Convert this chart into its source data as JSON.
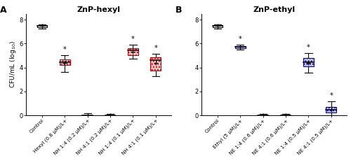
{
  "panel_A": {
    "title": "ZnP-hexyl",
    "label": "A",
    "categories": [
      "Control",
      "Hexyl (0.8 μM)/L+",
      "NH 1:4 (0.2 μM)/L+",
      "NH 4:1 (0.2 μM)/L+",
      "NH 1:4 (0.1 μM)/L+",
      "NH 4:1 (0.1 μM)/L+"
    ],
    "boxes": [
      {
        "q1": 7.38,
        "median": 7.47,
        "q3": 7.54,
        "whislo": 7.28,
        "whishi": 7.62,
        "mean": 7.47,
        "color": "none",
        "has_star": false
      },
      {
        "q1": 4.2,
        "median": 4.45,
        "q3": 4.68,
        "whislo": 3.65,
        "whishi": 5.05,
        "mean": 4.38,
        "color": "red",
        "has_star": true
      },
      {
        "q1": 0.0,
        "median": 0.0,
        "q3": 0.0,
        "whislo": 0.0,
        "whishi": 0.18,
        "mean": 0.0,
        "color": "none",
        "has_star": false
      },
      {
        "q1": 0.0,
        "median": 0.0,
        "q3": 0.0,
        "whislo": 0.0,
        "whishi": 0.12,
        "mean": 0.0,
        "color": "none",
        "has_star": false
      },
      {
        "q1": 5.05,
        "median": 5.45,
        "q3": 5.62,
        "whislo": 4.75,
        "whishi": 5.88,
        "mean": 5.35,
        "color": "red",
        "has_star": true
      },
      {
        "q1": 3.75,
        "median": 4.62,
        "q3": 4.88,
        "whislo": 3.25,
        "whishi": 5.15,
        "mean": 4.38,
        "color": "red",
        "has_star": true
      }
    ],
    "ylim": [
      0,
      8.5
    ],
    "yticks": [
      0,
      2,
      4,
      6,
      8
    ]
  },
  "panel_B": {
    "title": "ZnP-ethyl",
    "label": "B",
    "categories": [
      "Control",
      "Ethyl (5 μM)/L+",
      "NE 1:4 (0.6 μM)/L+",
      "NE 4:1 (0.6 μM)/L+",
      "NE 1:4 (0.5 μM)/L+",
      "NE 4:1 (0.5 μM)/L+"
    ],
    "boxes": [
      {
        "q1": 7.38,
        "median": 7.47,
        "q3": 7.54,
        "whislo": 7.28,
        "whishi": 7.62,
        "mean": 7.47,
        "color": "none",
        "has_star": false
      },
      {
        "q1": 5.62,
        "median": 5.72,
        "q3": 5.82,
        "whislo": 5.48,
        "whishi": 5.92,
        "mean": 5.72,
        "color": "blue",
        "has_star": true
      },
      {
        "q1": 0.0,
        "median": 0.0,
        "q3": 0.0,
        "whislo": 0.0,
        "whishi": 0.12,
        "mean": 0.0,
        "color": "none",
        "has_star": false
      },
      {
        "q1": 0.0,
        "median": 0.0,
        "q3": 0.0,
        "whislo": 0.0,
        "whishi": 0.12,
        "mean": 0.0,
        "color": "none",
        "has_star": false
      },
      {
        "q1": 4.08,
        "median": 4.42,
        "q3": 4.82,
        "whislo": 3.55,
        "whishi": 5.18,
        "mean": 4.38,
        "color": "blue",
        "has_star": true
      },
      {
        "q1": 0.22,
        "median": 0.48,
        "q3": 0.72,
        "whislo": 0.0,
        "whishi": 1.18,
        "mean": 0.45,
        "color": "blue",
        "has_star": true
      }
    ],
    "ylim": [
      0,
      8.5
    ],
    "yticks": [
      0,
      2,
      4,
      6,
      8
    ]
  },
  "ylabel": "CFU/mL (log$_{10}$)",
  "red_face": "#f5c6c6",
  "red_edge": "#cc0000",
  "blue_face": "#c6c6f5",
  "blue_edge": "#0000cc",
  "box_width": 0.45,
  "linewidth": 0.8,
  "cap_ratio": 0.35
}
